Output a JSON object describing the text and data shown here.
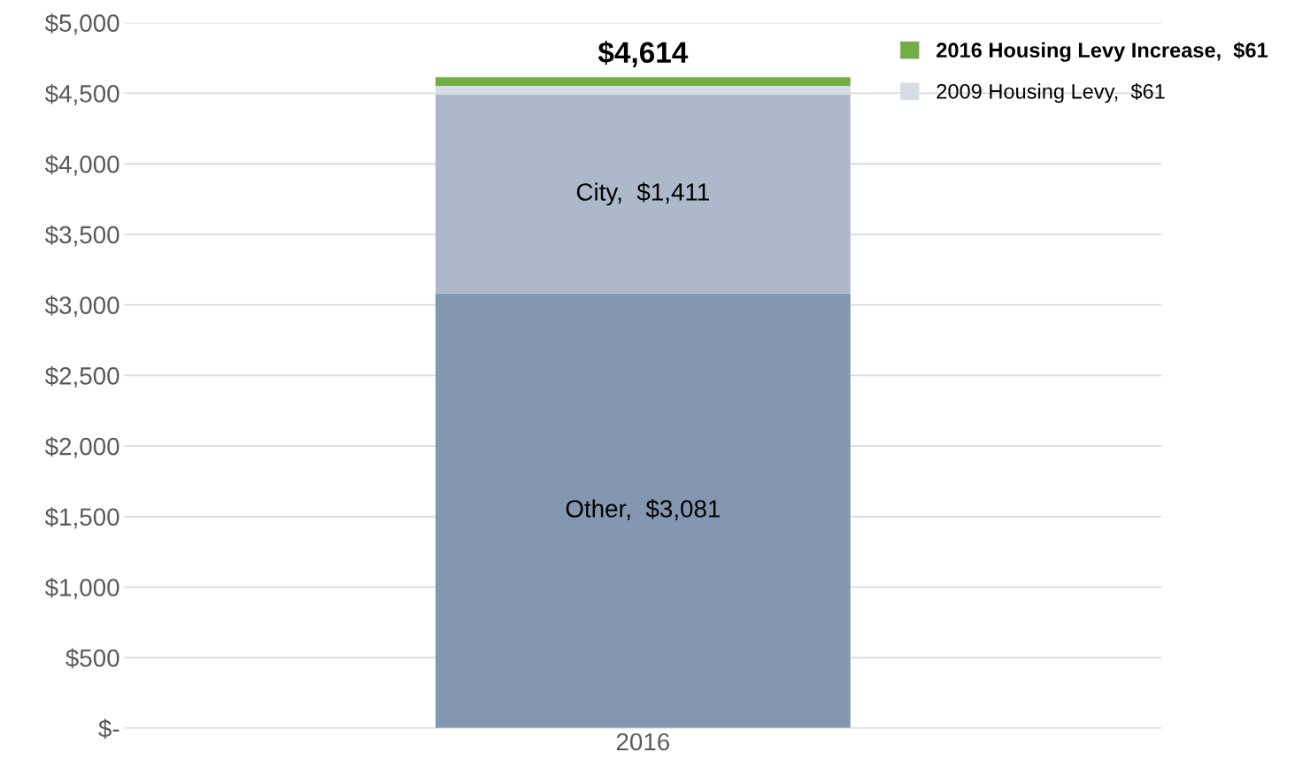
{
  "chart_data": {
    "type": "bar",
    "stacked": true,
    "categories": [
      "2016"
    ],
    "series": [
      {
        "name": "Other,",
        "color": "#8497b0",
        "values": [
          3081
        ],
        "value_labels": [
          "$3,081"
        ]
      },
      {
        "name": "City,",
        "color": "#adb9ca",
        "values": [
          1411
        ],
        "value_labels": [
          "$1,411"
        ]
      },
      {
        "name": "2009 Housing Levy,  $61",
        "color": "#d6dce5",
        "values": [
          61
        ]
      },
      {
        "name": "2016 Housing Levy Increase,  $61",
        "color": "#70ad47",
        "values": [
          61
        ]
      }
    ],
    "totals": [
      "$4,614"
    ],
    "ylim": [
      0,
      5000
    ],
    "yticks": [
      {
        "value": 0,
        "label": "$-"
      },
      {
        "value": 500,
        "label": "$500"
      },
      {
        "value": 1000,
        "label": "$1,000"
      },
      {
        "value": 1500,
        "label": "$1,500"
      },
      {
        "value": 2000,
        "label": "$2,000"
      },
      {
        "value": 2500,
        "label": "$2,500"
      },
      {
        "value": 3000,
        "label": "$3,000"
      },
      {
        "value": 3500,
        "label": "$3,500"
      },
      {
        "value": 4000,
        "label": "$4,000"
      },
      {
        "value": 4500,
        "label": "$4,500"
      },
      {
        "value": 5000,
        "label": "$5,000"
      }
    ],
    "grid": "y",
    "legend": "top right"
  }
}
